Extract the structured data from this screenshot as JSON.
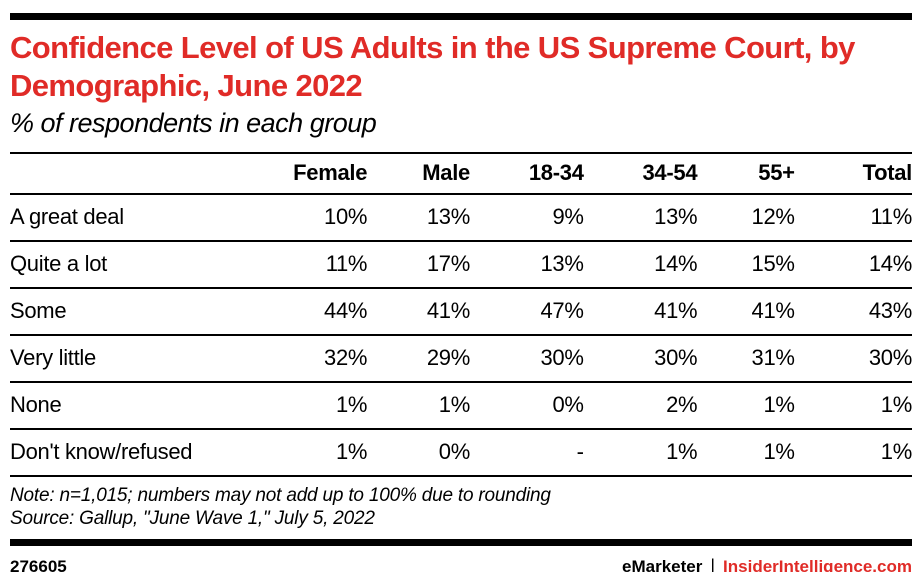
{
  "colors": {
    "accent_red": "#e02b27",
    "text_black": "#000000",
    "background": "#ffffff"
  },
  "chart_data": {
    "type": "table",
    "title": "Confidence Level of US Adults in the US Supreme Court, by Demographic, June 2022",
    "subtitle": "% of respondents in each group",
    "columns": [
      "",
      "Female",
      "Male",
      "18-34",
      "34-54",
      "55+",
      "Total"
    ],
    "rows": [
      {
        "label": "A great deal",
        "values": [
          "10%",
          "13%",
          "9%",
          "13%",
          "12%",
          "11%"
        ]
      },
      {
        "label": "Quite a lot",
        "values": [
          "11%",
          "17%",
          "13%",
          "14%",
          "15%",
          "14%"
        ]
      },
      {
        "label": "Some",
        "values": [
          "44%",
          "41%",
          "47%",
          "41%",
          "41%",
          "43%"
        ]
      },
      {
        "label": "Very little",
        "values": [
          "32%",
          "29%",
          "30%",
          "30%",
          "31%",
          "30%"
        ]
      },
      {
        "label": "None",
        "values": [
          "1%",
          "1%",
          "0%",
          "2%",
          "1%",
          "1%"
        ]
      },
      {
        "label": "Don't know/refused",
        "values": [
          "1%",
          "0%",
          "-",
          "1%",
          "1%",
          "1%"
        ]
      }
    ],
    "note": "Note: n=1,015; numbers may not add up to 100% due to rounding",
    "source": "Source: Gallup, \"June Wave 1,\" July 5, 2022"
  },
  "footer": {
    "chart_id": "276605",
    "brand": "eMarketer",
    "separator": "|",
    "site": "InsiderIntelligence.com"
  }
}
